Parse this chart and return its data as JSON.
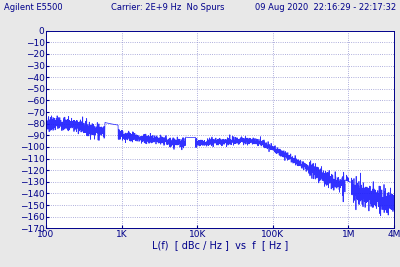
{
  "title_left": "Agilent E5500",
  "title_center": "Carrier: 2E+9 Hz  No Spurs",
  "title_right": "09 Aug 2020  22:16:29 - 22:17:32",
  "xlabel": "L(f)  [ dBc / Hz ]  vs  f  [ Hz ]",
  "xlim_log": [
    100,
    4000000
  ],
  "ylim": [
    -170,
    0
  ],
  "yticks": [
    0,
    -10,
    -20,
    -30,
    -40,
    -50,
    -60,
    -70,
    -80,
    -90,
    -100,
    -110,
    -120,
    -130,
    -140,
    -150,
    -160,
    -170
  ],
  "xtick_labels": [
    "100",
    "1K",
    "10K",
    "100K",
    "1M",
    "4M"
  ],
  "xtick_vals": [
    100,
    1000,
    10000,
    100000,
    1000000,
    4000000
  ],
  "line_color": "#1a1aff",
  "bg_color": "#e8e8e8",
  "plot_bg": "#ffffff",
  "grid_color": "#8888cc",
  "text_color": "#00008B",
  "title_fontsize": 6.0,
  "tick_fontsize": 6.5,
  "label_fontsize": 7.0
}
